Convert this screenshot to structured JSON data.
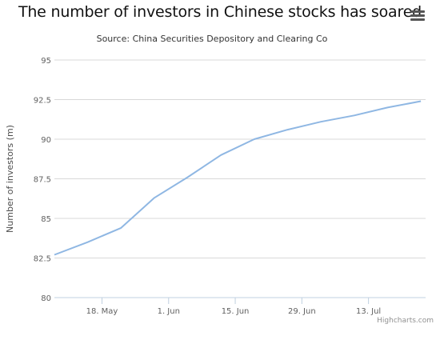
{
  "header": {
    "title": "The number of investors in Chinese stocks has soared",
    "subtitle": "Source: China Securities Depository and Clearing Co",
    "menu_icon": "hamburger-menu-icon",
    "credits": "Highcharts.com"
  },
  "colors": {
    "series": "#8fb7e3",
    "grid": "#d8d8d8",
    "axis_line": "#c0d0e0"
  },
  "chart_data": {
    "type": "line",
    "title": "The number of investors in Chinese stocks has soared",
    "subtitle": "Source: China Securities Depository and Clearing Co",
    "xlabel": "",
    "ylabel": "Number of investors (m)",
    "ylim": [
      80,
      95
    ],
    "yticks": [
      "80",
      "82.5",
      "85",
      "87.5",
      "90",
      "92.5",
      "95"
    ],
    "xlim": [
      "2015-05-08",
      "2015-07-25"
    ],
    "xticks": [
      {
        "date": "2015-05-18",
        "label": "18. May"
      },
      {
        "date": "2015-06-01",
        "label": "1. Jun"
      },
      {
        "date": "2015-06-15",
        "label": "15. Jun"
      },
      {
        "date": "2015-06-29",
        "label": "29. Jun"
      },
      {
        "date": "2015-07-13",
        "label": "13. Jul"
      }
    ],
    "grid": true,
    "legend": "none",
    "series": [
      {
        "x": [
          "2015-05-08",
          "2015-05-15",
          "2015-05-22",
          "2015-05-29",
          "2015-06-05",
          "2015-06-12",
          "2015-06-19",
          "2015-06-26",
          "2015-07-03",
          "2015-07-10",
          "2015-07-17",
          "2015-07-24"
        ],
        "values": [
          82.7,
          83.5,
          84.4,
          86.3,
          87.6,
          89.0,
          90.0,
          90.6,
          91.1,
          91.5,
          92.0,
          92.4
        ]
      }
    ]
  }
}
